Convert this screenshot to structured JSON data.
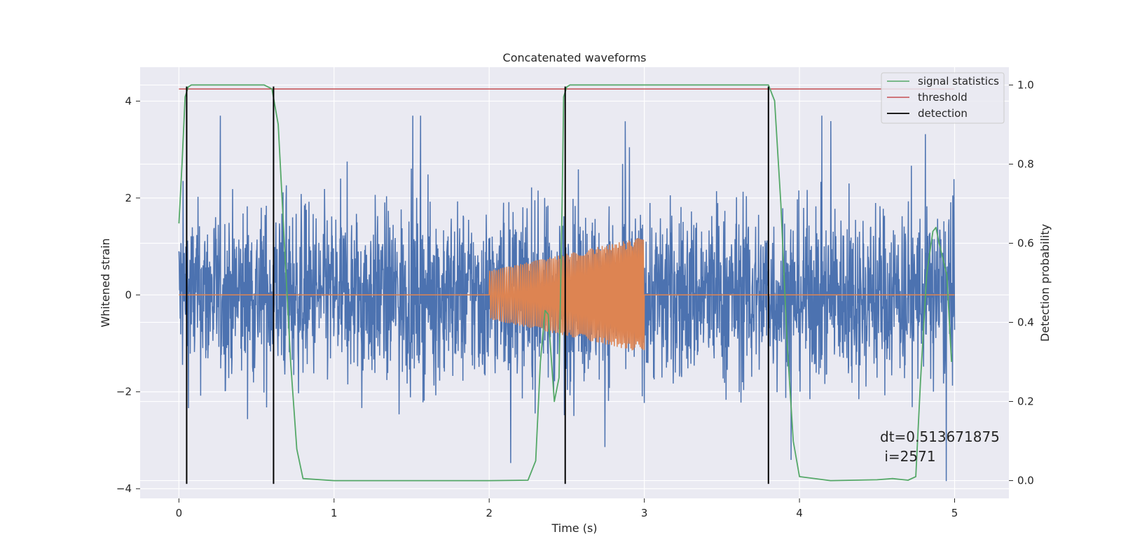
{
  "chart_data": {
    "type": "line",
    "title": "Concatenated waveforms",
    "xlabel": "Time (s)",
    "ylabel_left": "Whitened strain",
    "ylabel_right": "Detection probability",
    "xlim": [
      -0.25,
      5.35
    ],
    "ylim_left": [
      -4.2,
      4.7
    ],
    "ylim_right": [
      -0.045,
      1.045
    ],
    "x_ticks": [
      0,
      1,
      2,
      3,
      4,
      5
    ],
    "x_tick_labels": [
      "0",
      "1",
      "2",
      "3",
      "4",
      "5"
    ],
    "y_left_ticks": [
      -4,
      -2,
      0,
      2,
      4
    ],
    "y_left_tick_labels": [
      "−4",
      "−2",
      "0",
      "2",
      "4"
    ],
    "y_right_ticks": [
      0.0,
      0.2,
      0.4,
      0.6,
      0.8,
      1.0
    ],
    "y_right_tick_labels": [
      "0.0",
      "0.2",
      "0.4",
      "0.6",
      "0.8",
      "1.0"
    ],
    "grid": true,
    "legend_position": "top-right",
    "series": [
      {
        "name": "whitened strain",
        "axis": "left",
        "color": "#4c72b0",
        "description_x_range": [
          0,
          5
        ],
        "approx_amplitude": 1.0,
        "approx_extremes": [
          -3.9,
          3.7
        ]
      },
      {
        "name": "injected waveform",
        "axis": "left",
        "color": "#dd8452",
        "x_range": [
          0,
          5
        ],
        "chirp_x_range": [
          2.0,
          3.0
        ],
        "chirp_amplitude_start": 0.5,
        "chirp_amplitude_end": 1.2
      },
      {
        "name": "signal statistics",
        "axis": "right",
        "color": "#55a868",
        "x": [
          0.0,
          0.02,
          0.04,
          0.06,
          0.08,
          0.12,
          0.2,
          0.4,
          0.55,
          0.6,
          0.64,
          0.68,
          0.72,
          0.76,
          0.8,
          1.0,
          1.5,
          2.0,
          2.25,
          2.3,
          2.33,
          2.36,
          2.38,
          2.42,
          2.45,
          2.47,
          2.48,
          2.5,
          2.52,
          2.6,
          3.0,
          3.5,
          3.8,
          3.84,
          3.88,
          3.92,
          3.96,
          4.0,
          4.2,
          4.5,
          4.6,
          4.65,
          4.7,
          4.75,
          4.78,
          4.82,
          4.86,
          4.88,
          4.9,
          4.95,
          4.98
        ],
        "y": [
          0.65,
          0.8,
          0.97,
          0.995,
          1.0,
          1.0,
          1.0,
          1.0,
          1.0,
          0.99,
          0.9,
          0.6,
          0.3,
          0.08,
          0.005,
          0.0,
          0.0,
          0.0,
          0.001,
          0.05,
          0.3,
          0.43,
          0.42,
          0.2,
          0.26,
          0.7,
          0.97,
          0.995,
          1.0,
          1.0,
          1.0,
          1.0,
          1.0,
          0.96,
          0.7,
          0.35,
          0.1,
          0.01,
          0.0,
          0.002,
          0.005,
          0.003,
          0.001,
          0.01,
          0.25,
          0.52,
          0.63,
          0.64,
          0.6,
          0.52,
          0.3
        ]
      },
      {
        "name": "threshold",
        "axis": "right",
        "color": "#c44e52",
        "x": [
          0,
          5
        ],
        "y": [
          0.99,
          0.99
        ]
      },
      {
        "name": "detection",
        "axis": "left",
        "color": "#000000",
        "x_positions": [
          0.05,
          0.61,
          2.49,
          3.8
        ],
        "y_range": [
          -3.9,
          4.3
        ]
      }
    ],
    "legend": [
      "signal statistics",
      "threshold",
      "detection"
    ],
    "annotation": {
      "line1": "dt=0.513671875",
      "line2": " i=2571",
      "x": 4.5,
      "y_right": 0.095
    },
    "colors": {
      "plot_background": "#eaeaf2",
      "grid": "#ffffff",
      "text": "#262626"
    }
  }
}
